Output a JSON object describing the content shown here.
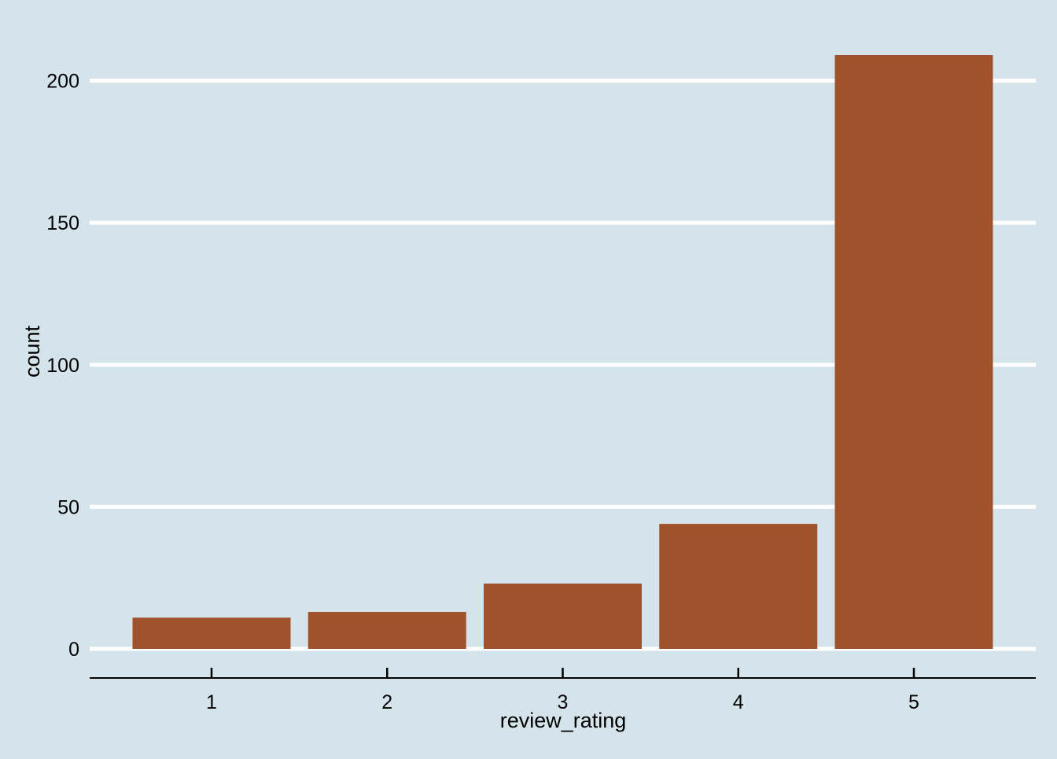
{
  "chart_data": {
    "type": "bar",
    "categories": [
      "1",
      "2",
      "3",
      "4",
      "5"
    ],
    "values": [
      11,
      13,
      23,
      44,
      209
    ],
    "xlabel": "review_rating",
    "ylabel": "count",
    "yticks": [
      "0",
      "50",
      "100",
      "150",
      "200"
    ],
    "ytick_values": [
      0,
      50,
      100,
      150,
      200
    ],
    "ylim": [
      0,
      218
    ],
    "grid": "horizontal",
    "legend": "none"
  },
  "colors": {
    "background": "#d5e4eb",
    "bar": "#a0522d",
    "gridline": "#ffffff",
    "axis": "#000000"
  }
}
